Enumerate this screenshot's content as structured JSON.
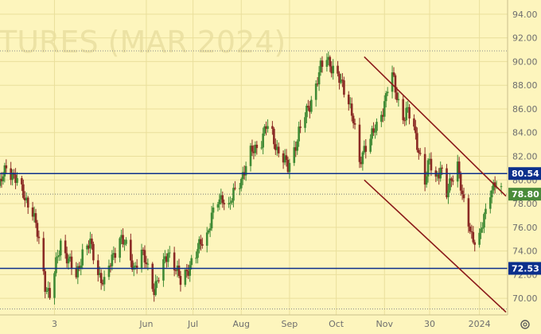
{
  "chart_data": {
    "type": "candlestick",
    "watermark": "TURES (MAR 2024)",
    "y_ticks": [
      "94.00",
      "92.00",
      "90.00",
      "88.00",
      "86.00",
      "84.00",
      "82.00",
      "80.00",
      "78.00",
      "76.00",
      "74.00",
      "72.00",
      "70.00"
    ],
    "y_range": [
      68.6,
      95.2
    ],
    "x_ticks": [
      {
        "label": "3",
        "date": "2023-04-03"
      },
      {
        "label": "Jun",
        "date": "2023-06-01"
      },
      {
        "label": "Jul",
        "date": "2023-07-01"
      },
      {
        "label": "Aug",
        "date": "2023-08-01"
      },
      {
        "label": "Sep",
        "date": "2023-09-01"
      },
      {
        "label": "Oct",
        "date": "2023-10-01"
      },
      {
        "label": "Nov",
        "date": "2023-11-01"
      },
      {
        "label": "30",
        "date": "2023-11-30"
      },
      {
        "label": "2024",
        "date": "2024-01-01"
      }
    ],
    "x_range": [
      "2023-02-27",
      "2024-01-15"
    ],
    "close_path": [
      [
        "2023-02-27",
        79.5
      ],
      [
        "2023-03-03",
        81.2
      ],
      [
        "2023-03-08",
        80.3
      ],
      [
        "2023-03-14",
        78.8
      ],
      [
        "2023-03-20",
        77.3
      ],
      [
        "2023-03-24",
        74.8
      ],
      [
        "2023-03-28",
        71.2
      ],
      [
        "2023-03-31",
        70.2
      ],
      [
        "2023-04-04",
        72.8
      ],
      [
        "2023-04-07",
        74.8
      ],
      [
        "2023-04-12",
        73.2
      ],
      [
        "2023-04-17",
        71.8
      ],
      [
        "2023-04-21",
        73.9
      ],
      [
        "2023-04-26",
        74.6
      ],
      [
        "2023-05-01",
        72.2
      ],
      [
        "2023-05-05",
        71.2
      ],
      [
        "2023-05-10",
        73.4
      ],
      [
        "2023-05-15",
        75.2
      ],
      [
        "2023-05-19",
        74.3
      ],
      [
        "2023-05-24",
        72.6
      ],
      [
        "2023-05-29",
        73.8
      ],
      [
        "2023-06-02",
        72.6
      ],
      [
        "2023-06-06",
        70.8
      ],
      [
        "2023-06-10",
        72.0
      ],
      [
        "2023-06-15",
        74.0
      ],
      [
        "2023-06-19",
        72.8
      ],
      [
        "2023-06-23",
        71.4
      ],
      [
        "2023-06-28",
        72.6
      ],
      [
        "2023-07-03",
        73.6
      ],
      [
        "2023-07-06",
        74.8
      ],
      [
        "2023-07-10",
        75.4
      ],
      [
        "2023-07-13",
        76.8
      ],
      [
        "2023-07-17",
        78.2
      ],
      [
        "2023-07-20",
        78.6
      ],
      [
        "2023-07-24",
        77.6
      ],
      [
        "2023-07-27",
        78.8
      ],
      [
        "2023-07-31",
        79.9
      ],
      [
        "2023-08-03",
        80.8
      ],
      [
        "2023-08-07",
        82.2
      ],
      [
        "2023-08-10",
        82.7
      ],
      [
        "2023-08-14",
        83.4
      ],
      [
        "2023-08-17",
        84.5
      ],
      [
        "2023-08-21",
        83.8
      ],
      [
        "2023-08-24",
        82.6
      ],
      [
        "2023-08-28",
        81.8
      ],
      [
        "2023-08-31",
        81.0
      ],
      [
        "2023-09-04",
        82.6
      ],
      [
        "2023-09-07",
        84.0
      ],
      [
        "2023-09-11",
        85.4
      ],
      [
        "2023-09-14",
        86.4
      ],
      [
        "2023-09-18",
        88.0
      ],
      [
        "2023-09-21",
        89.4
      ],
      [
        "2023-09-25",
        90.4
      ],
      [
        "2023-09-28",
        89.6
      ],
      [
        "2023-10-02",
        88.6
      ],
      [
        "2023-10-05",
        88.0
      ],
      [
        "2023-10-09",
        86.8
      ],
      [
        "2023-10-12",
        85.0
      ],
      [
        "2023-10-16",
        81.2
      ],
      [
        "2023-10-19",
        82.8
      ],
      [
        "2023-10-23",
        83.6
      ],
      [
        "2023-10-27",
        84.4
      ],
      [
        "2023-10-31",
        86.0
      ],
      [
        "2023-11-03",
        87.8
      ],
      [
        "2023-11-06",
        88.8
      ],
      [
        "2023-11-09",
        87.0
      ],
      [
        "2023-11-13",
        85.4
      ],
      [
        "2023-11-16",
        85.8
      ],
      [
        "2023-11-20",
        84.2
      ],
      [
        "2023-11-23",
        82.6
      ],
      [
        "2023-11-27",
        79.8
      ],
      [
        "2023-11-30",
        81.6
      ],
      [
        "2023-12-04",
        80.2
      ],
      [
        "2023-12-07",
        81.0
      ],
      [
        "2023-12-11",
        78.6
      ],
      [
        "2023-12-14",
        80.2
      ],
      [
        "2023-12-18",
        81.4
      ],
      [
        "2023-12-21",
        78.4
      ],
      [
        "2023-12-27",
        75.4
      ],
      [
        "2023-12-31",
        74.4
      ],
      [
        "2024-01-04",
        76.8
      ],
      [
        "2024-01-08",
        79.2
      ],
      [
        "2024-01-11",
        79.6
      ],
      [
        "2024-01-15",
        78.8
      ]
    ],
    "horizontal_lines": [
      {
        "value": 80.54,
        "label": "80.54",
        "color": "#0b2f8c"
      },
      {
        "value": 72.53,
        "label": "72.53",
        "color": "#0b2f8c"
      }
    ],
    "last_price": {
      "value": 78.8,
      "label": "78.80",
      "color": "#4a8b3a"
    },
    "dotted_levels": [
      90.9,
      69.1
    ],
    "channel_lines": [
      {
        "from": {
          "date": "2023-10-19",
          "value": 90.4
        },
        "to": {
          "date": "2024-01-15",
          "value": 78.6
        },
        "color": "#8b1a1a"
      },
      {
        "from": {
          "date": "2023-10-19",
          "value": 80.0
        },
        "to": {
          "date": "2024-01-15",
          "value": 68.8
        },
        "color": "#8b1a1a"
      }
    ],
    "colors": {
      "background": "#fdf5bd",
      "up": "#3f8a34",
      "down": "#8a2a24",
      "axis_text": "#6e6e6e"
    }
  },
  "ui": {
    "settings_icon": "gear-icon"
  }
}
